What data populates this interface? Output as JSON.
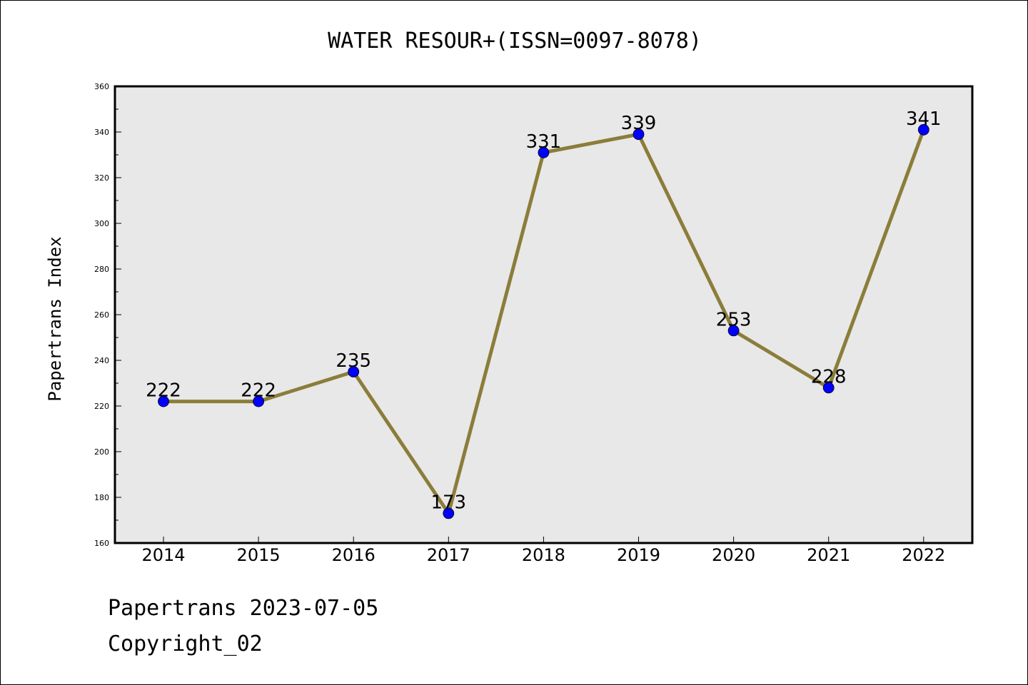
{
  "chart_data": {
    "type": "line",
    "title": "WATER RESOUR+(ISSN=0097-8078)",
    "xlabel": "",
    "ylabel": "Papertrans Index",
    "categories": [
      "2014",
      "2015",
      "2016",
      "2017",
      "2018",
      "2019",
      "2020",
      "2021",
      "2022"
    ],
    "series": [
      {
        "values": [
          222,
          222,
          235,
          173,
          331,
          339,
          253,
          228,
          341
        ]
      }
    ],
    "ylim": [
      160,
      360
    ],
    "yticks": [
      160,
      180,
      200,
      220,
      240,
      260,
      280,
      300,
      320,
      340,
      360
    ],
    "data_labels": true,
    "grid": false,
    "legend": "none",
    "colors": {
      "line": "#8b7d3a",
      "marker": "#0000ff",
      "plot_bg": "#e8e8e8",
      "frame": "#000000"
    }
  },
  "footer": {
    "line1": "Papertrans 2023-07-05",
    "line2": "Copyright_02"
  }
}
